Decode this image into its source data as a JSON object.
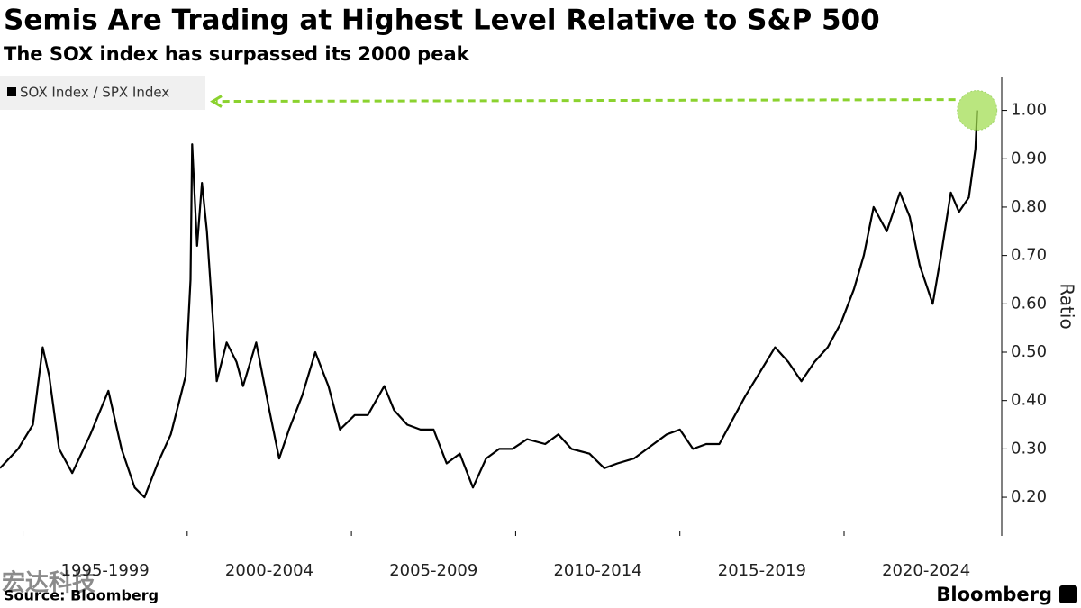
{
  "chart_data": {
    "type": "line",
    "title": "Semis Are Trading at Highest Level Relative to S&P 500",
    "subtitle": "The SOX index has surpassed its 2000 peak",
    "y_axis_label": "Ratio",
    "source": "Source: Bloomberg",
    "brand": "Bloomberg",
    "watermark": "宏达科技",
    "x": [
      1994.3,
      1994.85,
      1995.3,
      1995.6,
      1995.8,
      1996.1,
      1996.5,
      1997.05,
      1997.6,
      1998.0,
      1998.4,
      1998.7,
      1999.1,
      1999.5,
      1999.95,
      2000.1,
      2000.15,
      2000.3,
      2000.45,
      2000.6,
      2000.8,
      2000.9,
      2001.2,
      2001.5,
      2001.7,
      2002.1,
      2002.5,
      2002.8,
      2003.1,
      2003.5,
      2003.9,
      2004.3,
      2004.65,
      2005.1,
      2005.5,
      2006.0,
      2006.3,
      2006.7,
      2007.1,
      2007.5,
      2007.9,
      2008.3,
      2008.7,
      2009.1,
      2009.5,
      2009.9,
      2010.35,
      2010.9,
      2011.3,
      2011.7,
      2012.25,
      2012.7,
      2013.1,
      2013.6,
      2014.2,
      2014.6,
      2015.0,
      2015.4,
      2015.8,
      2016.2,
      2016.6,
      2017.0,
      2017.45,
      2017.9,
      2018.3,
      2018.7,
      2019.1,
      2019.5,
      2019.9,
      2020.3,
      2020.6,
      2020.9,
      2021.3,
      2021.7,
      2022.0,
      2022.3,
      2022.7,
      2022.95,
      2023.25,
      2023.5,
      2023.8,
      2024.0,
      2024.05
    ],
    "series": [
      {
        "name": "SOX Index / SPX Index",
        "color": "#000000",
        "values": [
          0.26,
          0.3,
          0.35,
          0.51,
          0.45,
          0.3,
          0.25,
          0.33,
          0.42,
          0.3,
          0.22,
          0.2,
          0.27,
          0.33,
          0.45,
          0.65,
          0.93,
          0.72,
          0.85,
          0.75,
          0.55,
          0.44,
          0.52,
          0.48,
          0.43,
          0.52,
          0.38,
          0.28,
          0.34,
          0.41,
          0.5,
          0.43,
          0.34,
          0.37,
          0.37,
          0.43,
          0.38,
          0.35,
          0.34,
          0.34,
          0.27,
          0.29,
          0.22,
          0.28,
          0.3,
          0.3,
          0.32,
          0.31,
          0.33,
          0.3,
          0.29,
          0.26,
          0.27,
          0.28,
          0.31,
          0.33,
          0.34,
          0.3,
          0.31,
          0.31,
          0.36,
          0.41,
          0.46,
          0.51,
          0.48,
          0.44,
          0.48,
          0.51,
          0.56,
          0.63,
          0.7,
          0.8,
          0.75,
          0.83,
          0.78,
          0.68,
          0.6,
          0.7,
          0.83,
          0.79,
          0.82,
          0.92,
          1.0
        ]
      }
    ],
    "xlim": [
      1994.3,
      2024.8
    ],
    "xticks": [
      {
        "value": 1995,
        "label": "1995-1999"
      },
      {
        "value": 2000,
        "label": "2000-2004"
      },
      {
        "value": 2005,
        "label": "2005-2009"
      },
      {
        "value": 2010,
        "label": "2010-2014"
      },
      {
        "value": 2015,
        "label": "2015-2019"
      },
      {
        "value": 2020,
        "label": "2020-2024"
      }
    ],
    "ylim": [
      0.12,
      1.07
    ],
    "yticks": [
      {
        "value": 0.2,
        "label": "0.20"
      },
      {
        "value": 0.3,
        "label": "0.30"
      },
      {
        "value": 0.4,
        "label": "0.40"
      },
      {
        "value": 0.5,
        "label": "0.50"
      },
      {
        "value": 0.6,
        "label": "0.60"
      },
      {
        "value": 0.7,
        "label": "0.70"
      },
      {
        "value": 0.8,
        "label": "0.80"
      },
      {
        "value": 0.9,
        "label": "0.90"
      },
      {
        "value": 1.0,
        "label": "1.00"
      }
    ],
    "legend": "top-left"
  }
}
